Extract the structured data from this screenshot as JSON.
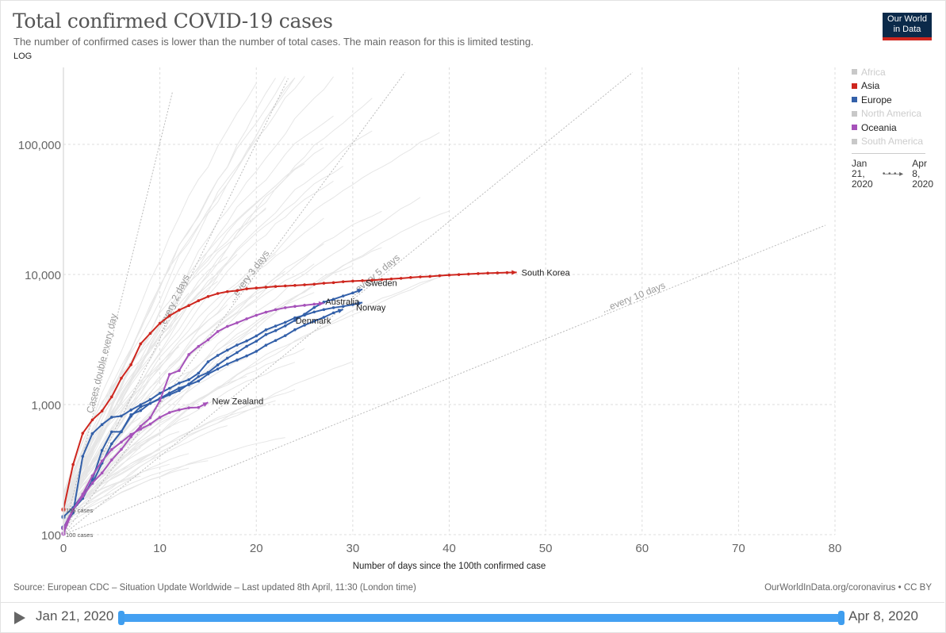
{
  "header": {
    "title": "Total confirmed COVID-19 cases",
    "subtitle": "The number of confirmed cases is lower than the number of total cases. The main reason for this is limited testing.",
    "scale_tag": "LOG",
    "logo_line1": "Our World",
    "logo_line2": "in Data"
  },
  "legend": {
    "items": [
      {
        "label": "Africa",
        "color": "#c8c8c8",
        "active": false
      },
      {
        "label": "Asia",
        "color": "#ce261e",
        "active": true
      },
      {
        "label": "Europe",
        "color": "#3360a9",
        "active": true
      },
      {
        "label": "North America",
        "color": "#c8c8c8",
        "active": false
      },
      {
        "label": "Oceania",
        "color": "#a652ba",
        "active": true
      },
      {
        "label": "South America",
        "color": "#c8c8c8",
        "active": false
      }
    ],
    "time_start": [
      "Jan",
      "21,",
      "2020"
    ],
    "time_end": [
      "Apr",
      "8,",
      "2020"
    ]
  },
  "footer": {
    "source": "Source: European CDC – Situation Update Worldwide – Last updated 8th April, 11:30 (London time)",
    "credit": "OurWorldInData.org/coronavirus • CC BY"
  },
  "timeline": {
    "start_label": "Jan 21, 2020",
    "end_label": "Apr 8, 2020",
    "range_fraction": [
      0,
      1
    ]
  },
  "chart_data": {
    "type": "line",
    "title": "Total confirmed COVID-19 cases",
    "xlabel": "Number of days since the 100th confirmed case",
    "ylabel": "",
    "yscale": "log",
    "xlim": [
      0,
      80
    ],
    "ylim": [
      100,
      400000
    ],
    "xticks": [
      0,
      10,
      20,
      30,
      40,
      50,
      60,
      70,
      80
    ],
    "yticks": [
      {
        "v": 100,
        "label": "100"
      },
      {
        "v": 1000,
        "label": "1,000"
      },
      {
        "v": 10000,
        "label": "10,000"
      },
      {
        "v": 100000,
        "label": "100,000"
      }
    ],
    "grid": true,
    "legend_position": "right",
    "start_annotations": [
      {
        "label": "155 cases",
        "y": 155
      },
      {
        "label": "100 cases",
        "y": 100
      }
    ],
    "doubling_lines": [
      {
        "label": "Cases double every day",
        "days": 1,
        "xmax": 11.3
      },
      {
        "label": "...every 2 days",
        "days": 2,
        "xmax": 23.3
      },
      {
        "label": "...every 3 days",
        "days": 3,
        "xmax": 35.4
      },
      {
        "label": "...every 5 days",
        "days": 5,
        "xmax": 59
      },
      {
        "label": "...every 10 days",
        "days": 10,
        "xmax": 79
      }
    ],
    "series": [
      {
        "name": "South Korea",
        "region": "Asia",
        "color": "#ce261e",
        "values": [
          156,
          346,
          602,
          763,
          893,
          1146,
          1595,
          2022,
          2931,
          3526,
          4212,
          4812,
          5328,
          5766,
          6284,
          6767,
          7134,
          7382,
          7513,
          7755,
          7869,
          7979,
          8086,
          8162,
          8236,
          8320,
          8413,
          8565,
          8652,
          8799,
          8897,
          8961,
          9037,
          9137,
          9241,
          9332,
          9478,
          9583,
          9661,
          9786,
          9887,
          9976,
          10062,
          10156,
          10237,
          10284,
          10331,
          10384
        ]
      },
      {
        "name": "Sweden",
        "region": "Europe",
        "color": "#3360a9",
        "values": [
          137,
          161,
          203,
          248,
          355,
          500,
          620,
          814,
          961,
          1022,
          1103,
          1190,
          1279,
          1439,
          1639,
          1763,
          2016,
          2272,
          2510,
          2806,
          3069,
          3447,
          3700,
          4028,
          4435,
          4947,
          5568,
          6131,
          6443,
          6830,
          7206,
          7693
        ]
      },
      {
        "name": "Norway",
        "region": "Europe",
        "color": "#3360a9",
        "values": [
          113,
          147,
          400,
          598,
          702,
          799,
          816,
          907,
          996,
          1090,
          1221,
          1333,
          1463,
          1552,
          1742,
          2132,
          2385,
          2621,
          2866,
          3084,
          3369,
          3755,
          4015,
          4284,
          4641,
          4863,
          5147,
          5370,
          5550,
          5687,
          5865,
          6086
        ]
      },
      {
        "name": "Denmark",
        "region": "Europe",
        "color": "#3360a9",
        "values": [
          113,
          156,
          190,
          264,
          444,
          617,
          617,
          836,
          898,
          1023,
          1115,
          1225,
          1337,
          1420,
          1514,
          1718,
          1877,
          2046,
          2200,
          2366,
          2564,
          2860,
          3107,
          3386,
          3757,
          4077,
          4369,
          4681,
          5071,
          5386
        ]
      },
      {
        "name": "Australia",
        "region": "Oceania",
        "color": "#a652ba",
        "values": [
          112,
          156,
          197,
          250,
          298,
          375,
          452,
          565,
          681,
          791,
          1071,
          1708,
          1823,
          2423,
          2799,
          3143,
          3640,
          3985,
          4250,
          4560,
          4860,
          5133,
          5358,
          5550,
          5687,
          5795,
          5908,
          6013
        ]
      },
      {
        "name": "New Zealand",
        "region": "Oceania",
        "color": "#a652ba",
        "values": [
          102,
          155,
          205,
          283,
          368,
          451,
          514,
          589,
          647,
          708,
          797,
          868,
          911,
          943,
          950,
          1039
        ]
      }
    ]
  }
}
